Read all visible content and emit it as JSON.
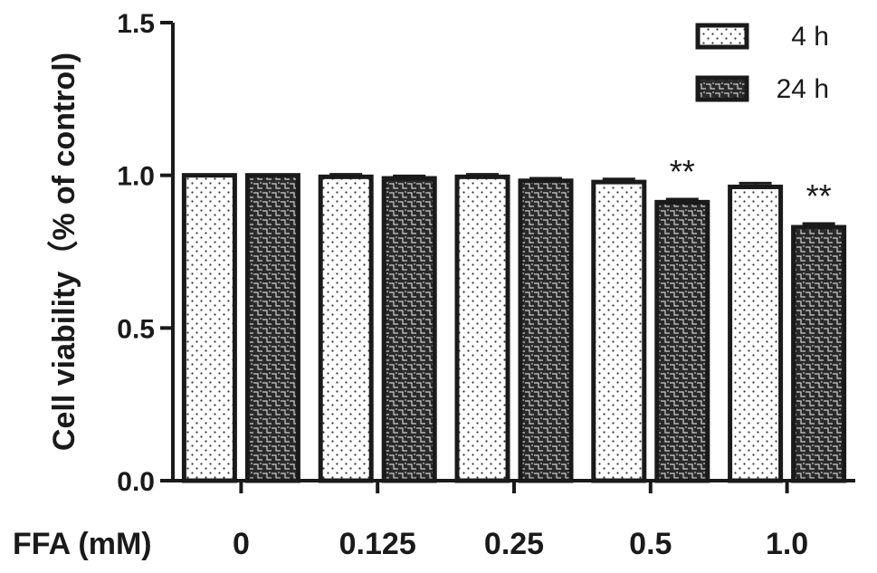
{
  "chart_data": {
    "type": "bar",
    "ylabel": "Cell viability（% of control)",
    "xlabel": "FFA (mM)",
    "categories": [
      "0",
      "0.125",
      "0.25",
      "0.5",
      "1.0"
    ],
    "series": [
      {
        "name": "4 h",
        "values": [
          1.0,
          0.995,
          0.995,
          0.978,
          0.962
        ],
        "errors": [
          0.0,
          0.008,
          0.008,
          0.01,
          0.012
        ],
        "pattern": "dots"
      },
      {
        "name": "24 h",
        "values": [
          1.0,
          0.99,
          0.982,
          0.912,
          0.83
        ],
        "errors": [
          0.0,
          0.008,
          0.008,
          0.01,
          0.012
        ],
        "pattern": "hatch"
      }
    ],
    "ylim": [
      0.0,
      1.5
    ],
    "yticks": [
      "0.0",
      "0.5",
      "1.0",
      "1.5"
    ],
    "annotations": [
      {
        "category_index": 3,
        "series_index": 1,
        "text": "**"
      },
      {
        "category_index": 4,
        "series_index": 1,
        "text": "**"
      }
    ],
    "legend_position": "top-right",
    "grid": false
  }
}
